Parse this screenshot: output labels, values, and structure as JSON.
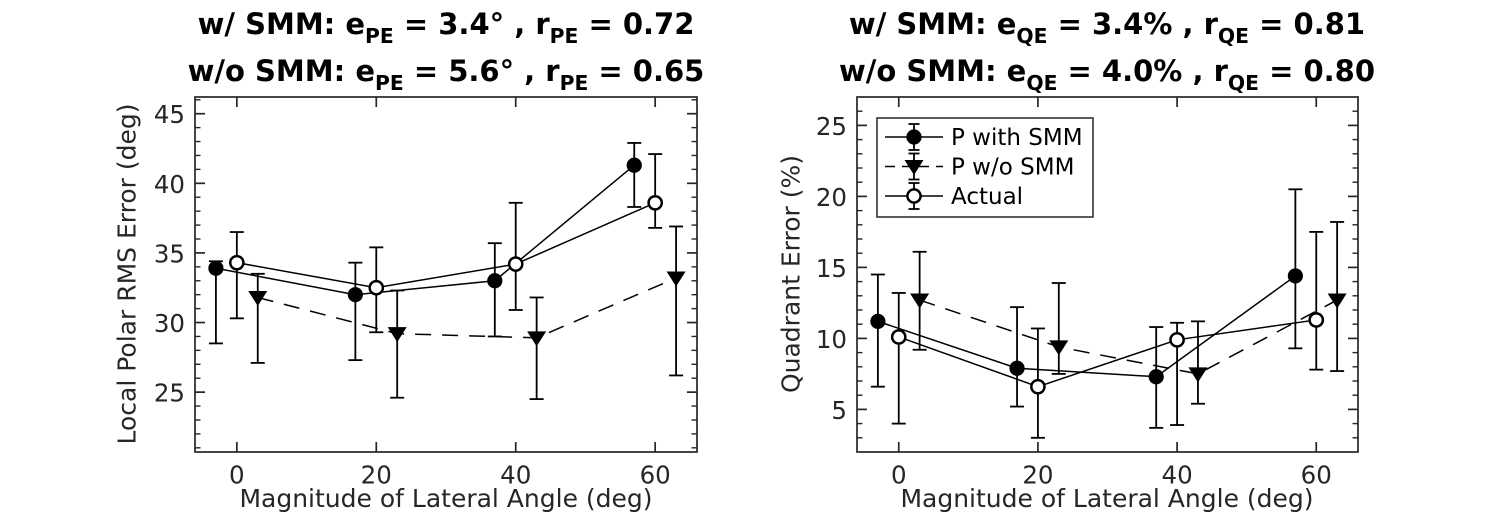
{
  "figure": {
    "background": "#ffffff",
    "axes_color": "#262626",
    "data_color": "#000000",
    "tick_label_color": "#262626"
  },
  "chart_data": [
    {
      "type": "line",
      "panel": "left",
      "title_lines": [
        {
          "segments": [
            {
              "text": "w/ SMM:  e"
            },
            {
              "text": "PE",
              "sub": true
            },
            {
              "text": " = 3.4° , r"
            },
            {
              "text": "PE",
              "sub": true
            },
            {
              "text": " = 0.72"
            }
          ]
        },
        {
          "segments": [
            {
              "text": "w/o SMM: e"
            },
            {
              "text": "PE",
              "sub": true
            },
            {
              "text": " = 5.6° , r"
            },
            {
              "text": "PE",
              "sub": true
            },
            {
              "text": " = 0.65"
            }
          ]
        }
      ],
      "xlabel": "Magnitude of Lateral Angle (deg)",
      "ylabel": "Local Polar RMS Error (deg)",
      "xlim": [
        -6,
        66
      ],
      "ylim": [
        20.7,
        46.2
      ],
      "xticks": [
        0,
        20,
        40,
        60
      ],
      "yticks": [
        25,
        30,
        35,
        40,
        45
      ],
      "y_minor_step": 1,
      "grid": false,
      "legend": null,
      "series": [
        {
          "name": "P with SMM",
          "marker": "filled-circle",
          "line_style": "solid",
          "x": [
            -3,
            17,
            37,
            57
          ],
          "y": [
            33.9,
            32.0,
            33.0,
            41.3
          ],
          "err_lo": [
            28.5,
            27.3,
            29.0,
            38.3
          ],
          "err_hi": [
            34.4,
            34.3,
            35.7,
            42.9
          ]
        },
        {
          "name": "P w/o SMM",
          "marker": "filled-triangle-down",
          "line_style": "dashed",
          "x": [
            3,
            23,
            43,
            63
          ],
          "y": [
            31.8,
            29.2,
            28.9,
            33.2
          ],
          "err_lo": [
            27.1,
            24.6,
            24.5,
            26.2
          ],
          "err_hi": [
            33.5,
            32.3,
            31.8,
            36.9
          ]
        },
        {
          "name": "Actual",
          "marker": "open-circle",
          "line_style": "solid",
          "x": [
            0,
            20,
            40,
            60
          ],
          "y": [
            34.3,
            32.5,
            34.2,
            38.6
          ],
          "err_lo": [
            30.3,
            29.3,
            30.9,
            36.8
          ],
          "err_hi": [
            36.5,
            35.4,
            38.6,
            42.1
          ]
        }
      ]
    },
    {
      "type": "line",
      "panel": "right",
      "title_lines": [
        {
          "segments": [
            {
              "text": "w/ SMM:  e"
            },
            {
              "text": "QE",
              "sub": true
            },
            {
              "text": " = 3.4% , r"
            },
            {
              "text": "QE",
              "sub": true
            },
            {
              "text": " = 0.81"
            }
          ]
        },
        {
          "segments": [
            {
              "text": "w/o SMM: e"
            },
            {
              "text": "QE",
              "sub": true
            },
            {
              "text": " = 4.0% , r"
            },
            {
              "text": "QE",
              "sub": true
            },
            {
              "text": " = 0.80"
            }
          ]
        }
      ],
      "xlabel": "Magnitude of Lateral Angle (deg)",
      "ylabel": "Quadrant Error (%)",
      "xlim": [
        -6,
        66
      ],
      "ylim": [
        2.0,
        27.0
      ],
      "xticks": [
        0,
        20,
        40,
        60
      ],
      "yticks": [
        5,
        10,
        15,
        20,
        25
      ],
      "y_minor_step": 1,
      "grid": false,
      "legend": {
        "position": "top-left",
        "series_order": [
          0,
          1,
          2
        ]
      },
      "series": [
        {
          "name": "P with SMM",
          "marker": "filled-circle",
          "line_style": "solid",
          "x": [
            -3,
            17,
            37,
            57
          ],
          "y": [
            11.2,
            7.9,
            7.3,
            14.4
          ],
          "err_lo": [
            6.6,
            5.2,
            3.7,
            9.3
          ],
          "err_hi": [
            14.5,
            12.2,
            10.8,
            20.5
          ]
        },
        {
          "name": "P w/o SMM",
          "marker": "filled-triangle-down",
          "line_style": "dashed",
          "x": [
            3,
            23,
            43,
            63
          ],
          "y": [
            12.7,
            9.4,
            7.5,
            12.7
          ],
          "err_lo": [
            9.2,
            7.5,
            5.4,
            7.7
          ],
          "err_hi": [
            16.1,
            13.9,
            11.2,
            18.2
          ]
        },
        {
          "name": "Actual",
          "marker": "open-circle",
          "line_style": "solid",
          "x": [
            0,
            20,
            40,
            60
          ],
          "y": [
            10.1,
            6.6,
            9.9,
            11.3
          ],
          "err_lo": [
            4.0,
            3.0,
            3.9,
            7.8
          ],
          "err_hi": [
            13.2,
            10.7,
            11.1,
            17.5
          ]
        }
      ]
    }
  ]
}
